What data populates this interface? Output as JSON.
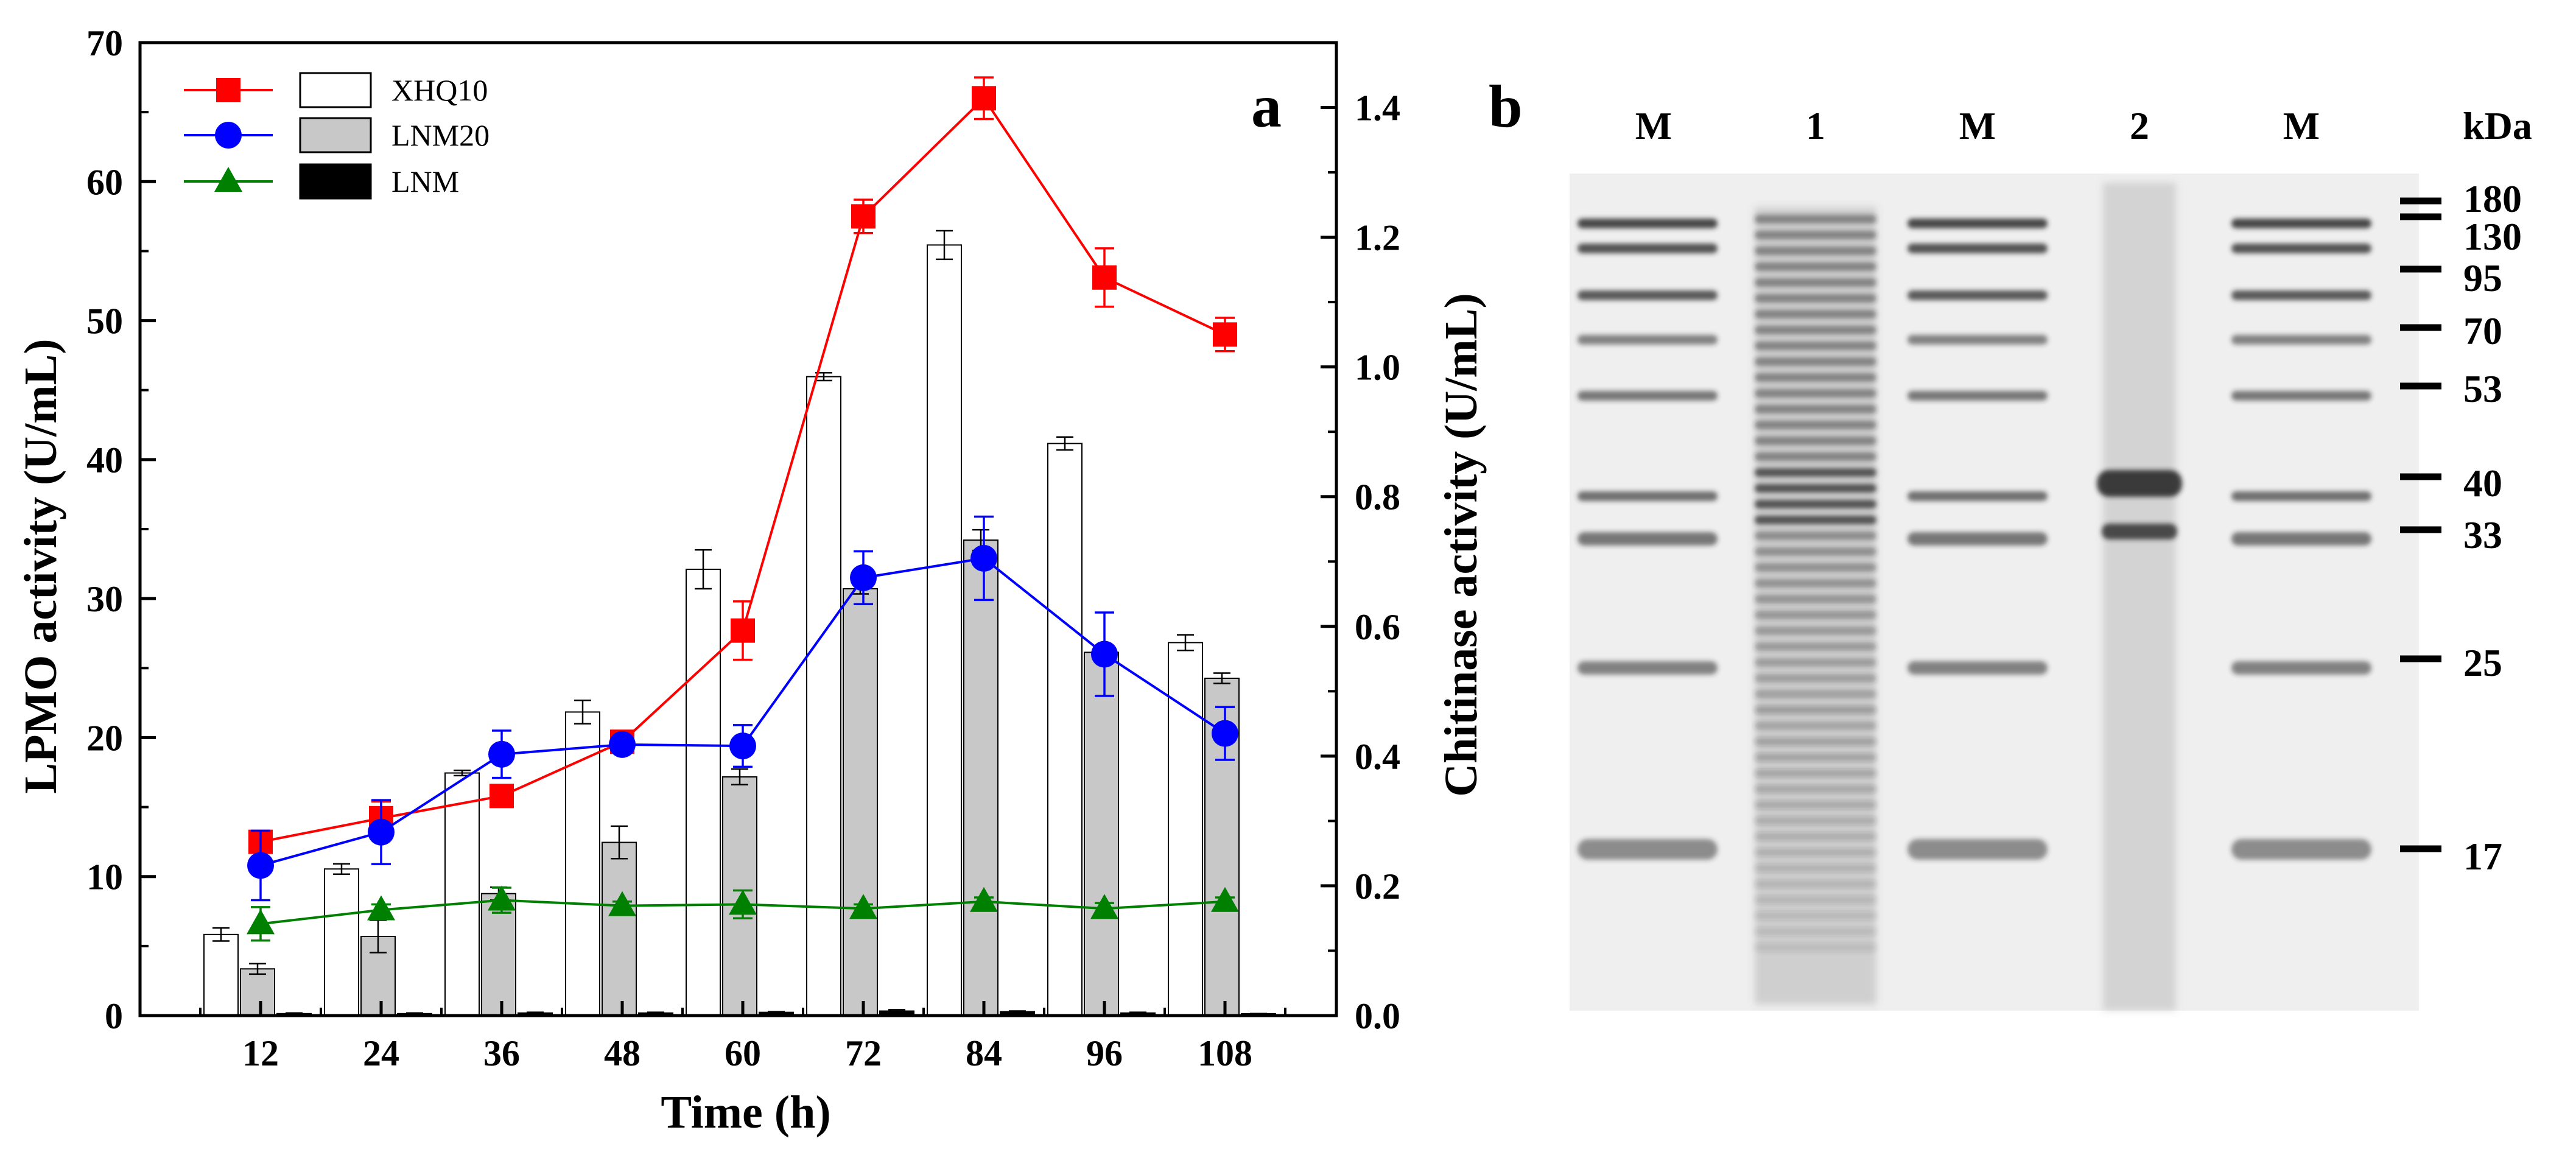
{
  "chart_data": [
    {
      "type": "bar+line",
      "panel_label": "a",
      "xlabel": "Time (h)",
      "ylabel_left": "LPMO activity (U/mL)",
      "ylabel_right": "Chitinase activity (U/mL)",
      "categories": [
        "12",
        "24",
        "36",
        "48",
        "60",
        "72",
        "84",
        "96",
        "108"
      ],
      "ylim_left": [
        0,
        70
      ],
      "yticks_left": [
        "0",
        "10",
        "20",
        "30",
        "40",
        "50",
        "60",
        "70"
      ],
      "ylim_right": [
        0,
        1.5
      ],
      "yticks_right": [
        "0.0",
        "0.2",
        "0.4",
        "0.6",
        "0.8",
        "1.0",
        "1.2",
        "1.4"
      ],
      "bar_series": [
        {
          "name": "XHQ10",
          "color": "#ffffff",
          "values": [
            0.125,
            0.226,
            0.374,
            0.468,
            0.688,
            0.985,
            1.188,
            0.882,
            0.575
          ],
          "errors": [
            0.01,
            0.008,
            0.004,
            0.018,
            0.03,
            0.006,
            0.022,
            0.01,
            0.012
          ]
        },
        {
          "name": "LNM20",
          "color": "#c8c8c8",
          "values": [
            0.072,
            0.122,
            0.188,
            0.267,
            0.368,
            0.658,
            0.733,
            0.56,
            0.52
          ],
          "errors": [
            0.008,
            0.025,
            0.01,
            0.025,
            0.012,
            0.008,
            0.016,
            0.01,
            0.008
          ]
        },
        {
          "name": "LNM",
          "color": "#000000",
          "values": [
            0.003,
            0.003,
            0.004,
            0.004,
            0.005,
            0.007,
            0.006,
            0.004,
            0.002
          ],
          "errors": [
            0.001,
            0.001,
            0.001,
            0.001,
            0.001,
            0.002,
            0.001,
            0.001,
            0.001
          ]
        }
      ],
      "line_series": [
        {
          "name": "XHQ10",
          "color": "#ff0000",
          "marker": "square",
          "values": [
            12.5,
            14.2,
            15.8,
            19.7,
            27.7,
            57.5,
            66.0,
            53.1,
            49.0
          ],
          "errors": [
            0.5,
            1.2,
            0.6,
            0.5,
            2.1,
            1.2,
            1.5,
            2.1,
            1.2
          ]
        },
        {
          "name": "LNM20",
          "color": "#0000ff",
          "marker": "circle",
          "values": [
            10.8,
            13.2,
            18.8,
            19.5,
            19.4,
            31.5,
            32.9,
            26.0,
            20.3
          ],
          "errors": [
            2.5,
            2.3,
            1.7,
            0.6,
            1.5,
            1.9,
            3.0,
            3.0,
            1.9
          ]
        },
        {
          "name": "LNM",
          "color": "#008000",
          "marker": "triangle",
          "values": [
            6.6,
            7.6,
            8.3,
            7.9,
            8.0,
            7.7,
            8.2,
            7.7,
            8.2
          ],
          "errors": [
            1.2,
            0.4,
            0.9,
            0.3,
            1.0,
            0.3,
            0.3,
            0.4,
            0.3
          ]
        }
      ]
    },
    {
      "type": "gel",
      "panel_label": "b",
      "lane_labels": [
        "M",
        "1",
        "M",
        "2",
        "M"
      ],
      "unit_label": "kDa",
      "marker_labels": [
        "180",
        "130",
        "95",
        "70",
        "53",
        "40",
        "33",
        "25",
        "17"
      ]
    }
  ]
}
